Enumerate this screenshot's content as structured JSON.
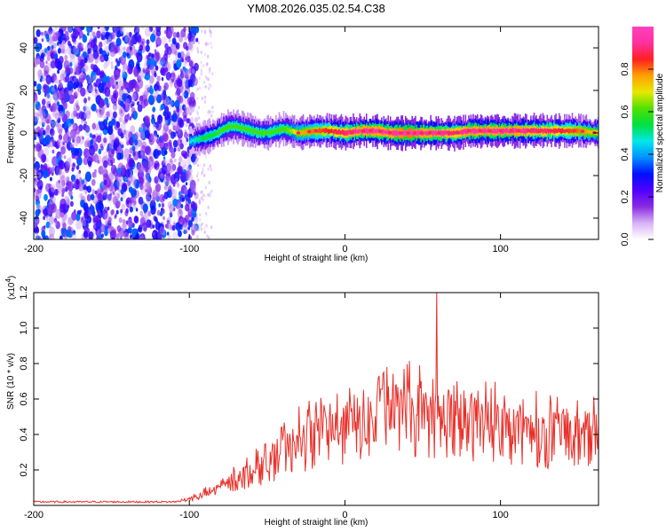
{
  "title": "YM08.2026.035.02.54.C38",
  "chart_data": [
    {
      "type": "heatmap",
      "xlabel": "Height of straight line (km)",
      "ylabel": "Frequency (Hz)",
      "xlim": [
        -200,
        163
      ],
      "ylim": [
        -50,
        50
      ],
      "xticks": [
        -200,
        -100,
        0,
        100
      ],
      "yticks": [
        -40,
        -20,
        0,
        20,
        40
      ],
      "colorbar": {
        "label": "Normalized spectral amplitude",
        "range": [
          0,
          1
        ],
        "ticks": [
          "0.0",
          "0.2",
          "0.4",
          "0.6",
          "0.8"
        ],
        "colormap": [
          "#ffffff",
          "#d7b3f5",
          "#8a2be2",
          "#4f00ff",
          "#0010ff",
          "#0090ff",
          "#00e8e8",
          "#00e040",
          "#50e000",
          "#e8e800",
          "#ffa000",
          "#ff2020",
          "#ff30a0",
          "#ff40c0"
        ]
      },
      "noise_region": {
        "x_range": [
          -200,
          -95
        ],
        "peak_level": 0.3
      },
      "ridge": [
        {
          "x": -100,
          "y": -4,
          "amp": 0.35
        },
        {
          "x": -95,
          "y": -3,
          "amp": 0.4
        },
        {
          "x": -90,
          "y": -2,
          "amp": 0.45
        },
        {
          "x": -85,
          "y": -1,
          "amp": 0.45
        },
        {
          "x": -80,
          "y": 1,
          "amp": 0.5
        },
        {
          "x": -75,
          "y": 3,
          "amp": 0.5
        },
        {
          "x": -70,
          "y": 3,
          "amp": 0.5
        },
        {
          "x": -65,
          "y": 2,
          "amp": 0.5
        },
        {
          "x": -60,
          "y": 1,
          "amp": 0.5
        },
        {
          "x": -55,
          "y": 0,
          "amp": 0.5
        },
        {
          "x": -50,
          "y": 0,
          "amp": 0.5
        },
        {
          "x": -45,
          "y": 1,
          "amp": 0.5
        },
        {
          "x": -40,
          "y": 2,
          "amp": 0.5
        },
        {
          "x": -35,
          "y": 1,
          "amp": 0.55
        },
        {
          "x": -30,
          "y": 0,
          "amp": 0.65
        },
        {
          "x": -20,
          "y": 1,
          "amp": 0.7
        },
        {
          "x": -10,
          "y": 1,
          "amp": 0.75
        },
        {
          "x": 0,
          "y": 0,
          "amp": 0.8
        },
        {
          "x": 10,
          "y": 1,
          "amp": 0.85
        },
        {
          "x": 20,
          "y": 1,
          "amp": 0.85
        },
        {
          "x": 30,
          "y": 0,
          "amp": 0.85
        },
        {
          "x": 40,
          "y": 0,
          "amp": 0.9
        },
        {
          "x": 50,
          "y": 0,
          "amp": 0.85
        },
        {
          "x": 60,
          "y": 0,
          "amp": 0.85
        },
        {
          "x": 70,
          "y": 0,
          "amp": 0.8
        },
        {
          "x": 80,
          "y": 1,
          "amp": 0.85
        },
        {
          "x": 90,
          "y": 1,
          "amp": 0.85
        },
        {
          "x": 100,
          "y": 1,
          "amp": 0.85
        },
        {
          "x": 110,
          "y": 1,
          "amp": 0.85
        },
        {
          "x": 120,
          "y": 1,
          "amp": 0.8
        },
        {
          "x": 130,
          "y": 1,
          "amp": 0.8
        },
        {
          "x": 140,
          "y": 1,
          "amp": 0.75
        },
        {
          "x": 150,
          "y": 1,
          "amp": 0.7
        },
        {
          "x": 163,
          "y": 0,
          "amp": 0.6
        }
      ]
    },
    {
      "type": "line",
      "xlabel": "Height of straight line (km)",
      "ylabel": "SNR (10 * v/v)",
      "yscale_note": "(x10",
      "yscale_exponent": "4",
      "xlim": [
        -200,
        163
      ],
      "ylim": [
        0,
        1.2
      ],
      "xticks": [
        -200,
        -100,
        0,
        100
      ],
      "yticks": [
        0.2,
        0.4,
        0.6,
        0.8,
        1.0,
        1.2
      ],
      "ytick_labels": [
        "0.2",
        "0.4",
        "0.6",
        "0.8",
        "1.0",
        "1.2"
      ],
      "series": [
        {
          "color": "#e8302a",
          "envelope": {
            "x": [
              -200,
              -150,
              -110,
              -100,
              -90,
              -80,
              -70,
              -60,
              -50,
              -40,
              -30,
              -20,
              -10,
              0,
              10,
              20,
              30,
              40,
              50,
              60,
              70,
              80,
              90,
              100,
              110,
              120,
              130,
              140,
              150,
              163
            ],
            "y": [
              0.02,
              0.02,
              0.02,
              0.03,
              0.06,
              0.1,
              0.14,
              0.18,
              0.22,
              0.28,
              0.33,
              0.37,
              0.4,
              0.42,
              0.45,
              0.46,
              0.47,
              0.48,
              0.48,
              0.47,
              0.47,
              0.45,
              0.43,
              0.42,
              0.4,
              0.39,
              0.38,
              0.38,
              0.37,
              0.36
            ]
          },
          "peaks": [
            {
              "x": 59,
              "y": 1.22
            },
            {
              "x": 48,
              "y": 0.79
            },
            {
              "x": 38,
              "y": 0.77
            },
            {
              "x": 27,
              "y": 0.78
            },
            {
              "x": 22,
              "y": 0.73
            },
            {
              "x": 33,
              "y": 0.68
            }
          ]
        }
      ]
    }
  ]
}
